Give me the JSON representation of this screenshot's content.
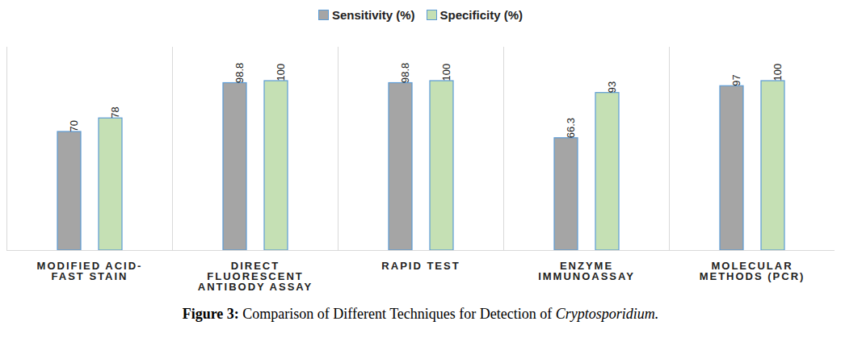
{
  "chart_data": {
    "type": "bar",
    "title": "Figure 3: Comparison of Different Techniques for Detection of Cryptosporidium.",
    "categories": [
      "MODIFIED ACID-FAST STAIN",
      "DIRECT FLUORESCENT ANTIBODY ASSAY",
      "RAPID TEST",
      "ENZYME IMMUNOASSAY",
      "MOLECULAR METHODS (PCR)"
    ],
    "series": [
      {
        "name": "Sensitivity (%)",
        "color": "#a5a5a5",
        "values": [
          70,
          98.8,
          98.8,
          66.3,
          97
        ]
      },
      {
        "name": "Specificity (%)",
        "color": "#c5e0b4",
        "values": [
          78,
          100,
          100,
          93,
          100
        ]
      }
    ],
    "ylim": [
      0,
      120
    ],
    "data_labels": true,
    "tick_labels": "x",
    "legend": "top"
  }
}
